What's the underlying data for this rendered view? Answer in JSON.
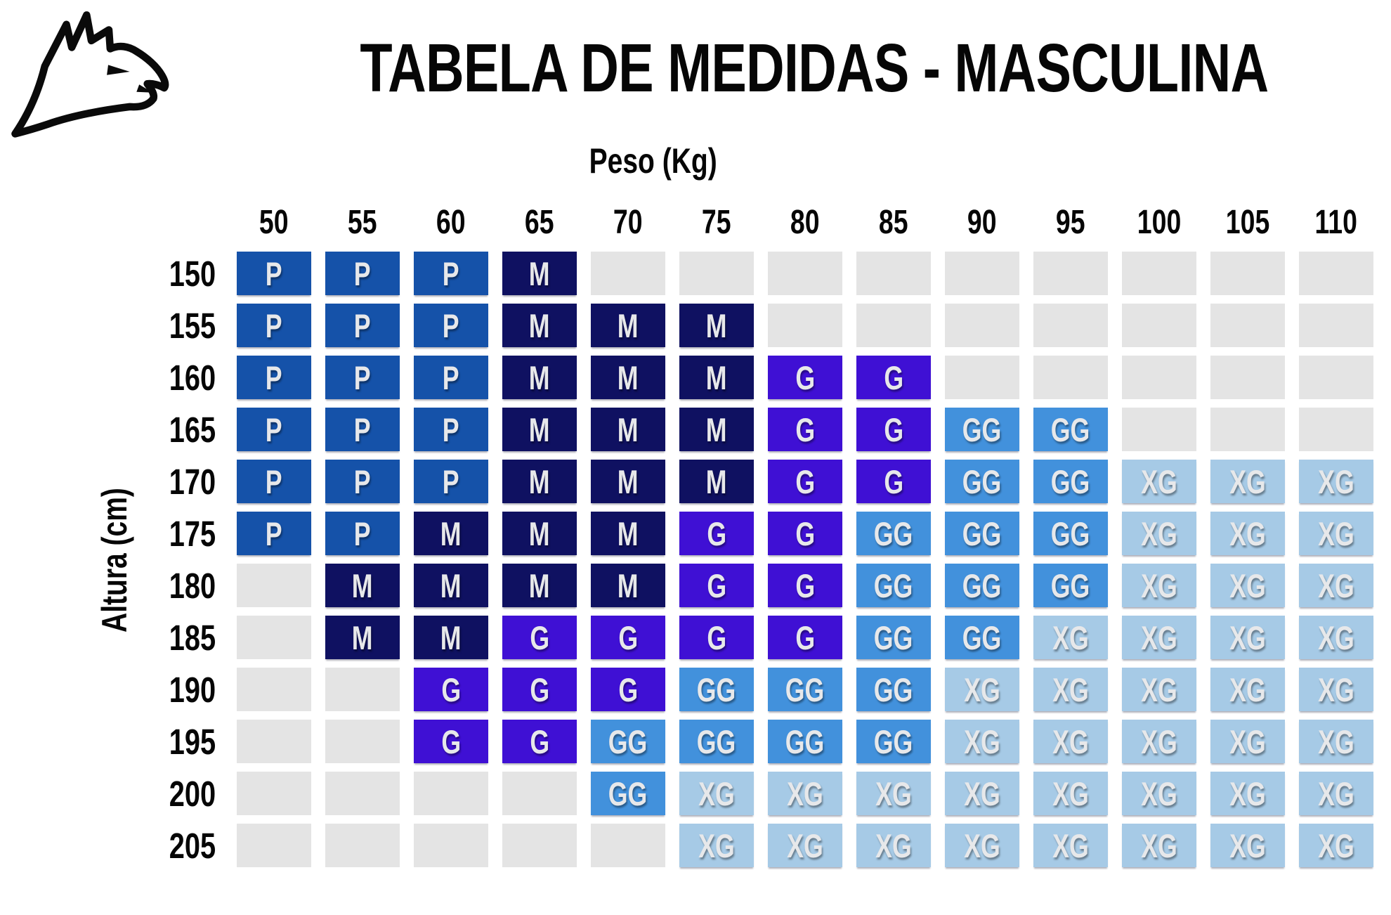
{
  "header": {
    "title": "TABELA DE MEDIDAS - MASCULINA"
  },
  "icons": {
    "logo": "eagle-head-icon"
  },
  "axes": {
    "x_label": "Peso (Kg)",
    "y_label": "Altura (cm)"
  },
  "colors": {
    "P": "#1552A9",
    "M": "#0F1161",
    "G": "#3F10D4",
    "GG": "#4291DC",
    "XG": "#A6CAE6",
    "empty": "#E4E4E4",
    "cell_text": "#E7E8EA",
    "text": "#060606",
    "background": "#FFFFFF"
  },
  "chart_data": {
    "type": "heatmap",
    "title": "TABELA DE MEDIDAS - MASCULINA",
    "xlabel": "Peso (Kg)",
    "ylabel": "Altura (cm)",
    "x": [
      50,
      55,
      60,
      65,
      70,
      75,
      80,
      85,
      90,
      95,
      100,
      105,
      110
    ],
    "y": [
      150,
      155,
      160,
      165,
      170,
      175,
      180,
      185,
      190,
      195,
      200,
      205
    ],
    "values": [
      [
        "P",
        "P",
        "P",
        "M",
        "",
        "",
        "",
        "",
        "",
        "",
        "",
        "",
        ""
      ],
      [
        "P",
        "P",
        "P",
        "M",
        "M",
        "M",
        "",
        "",
        "",
        "",
        "",
        "",
        ""
      ],
      [
        "P",
        "P",
        "P",
        "M",
        "M",
        "M",
        "G",
        "G",
        "",
        "",
        "",
        "",
        ""
      ],
      [
        "P",
        "P",
        "P",
        "M",
        "M",
        "M",
        "G",
        "G",
        "GG",
        "GG",
        "",
        "",
        ""
      ],
      [
        "P",
        "P",
        "P",
        "M",
        "M",
        "M",
        "G",
        "G",
        "GG",
        "GG",
        "XG",
        "XG",
        "XG"
      ],
      [
        "P",
        "P",
        "M",
        "M",
        "M",
        "G",
        "G",
        "GG",
        "GG",
        "GG",
        "XG",
        "XG",
        "XG"
      ],
      [
        "",
        "M",
        "M",
        "M",
        "M",
        "G",
        "G",
        "GG",
        "GG",
        "GG",
        "XG",
        "XG",
        "XG"
      ],
      [
        "",
        "M",
        "M",
        "G",
        "G",
        "G",
        "G",
        "GG",
        "GG",
        "XG",
        "XG",
        "XG",
        "XG"
      ],
      [
        "",
        "",
        "G",
        "G",
        "G",
        "GG",
        "GG",
        "GG",
        "XG",
        "XG",
        "XG",
        "XG",
        "XG"
      ],
      [
        "",
        "",
        "G",
        "G",
        "GG",
        "GG",
        "GG",
        "GG",
        "XG",
        "XG",
        "XG",
        "XG",
        "XG"
      ],
      [
        "",
        "",
        "",
        "",
        "GG",
        "XG",
        "XG",
        "XG",
        "XG",
        "XG",
        "XG",
        "XG",
        "XG"
      ],
      [
        "",
        "",
        "",
        "",
        "",
        "XG",
        "XG",
        "XG",
        "XG",
        "XG",
        "XG",
        "XG",
        "XG"
      ]
    ],
    "legend": {
      "P": "#1552A9",
      "M": "#0F1161",
      "G": "#3F10D4",
      "GG": "#4291DC",
      "XG": "#A6CAE6",
      "empty": "#E4E4E4"
    },
    "grid": false,
    "legend_position": "none"
  }
}
